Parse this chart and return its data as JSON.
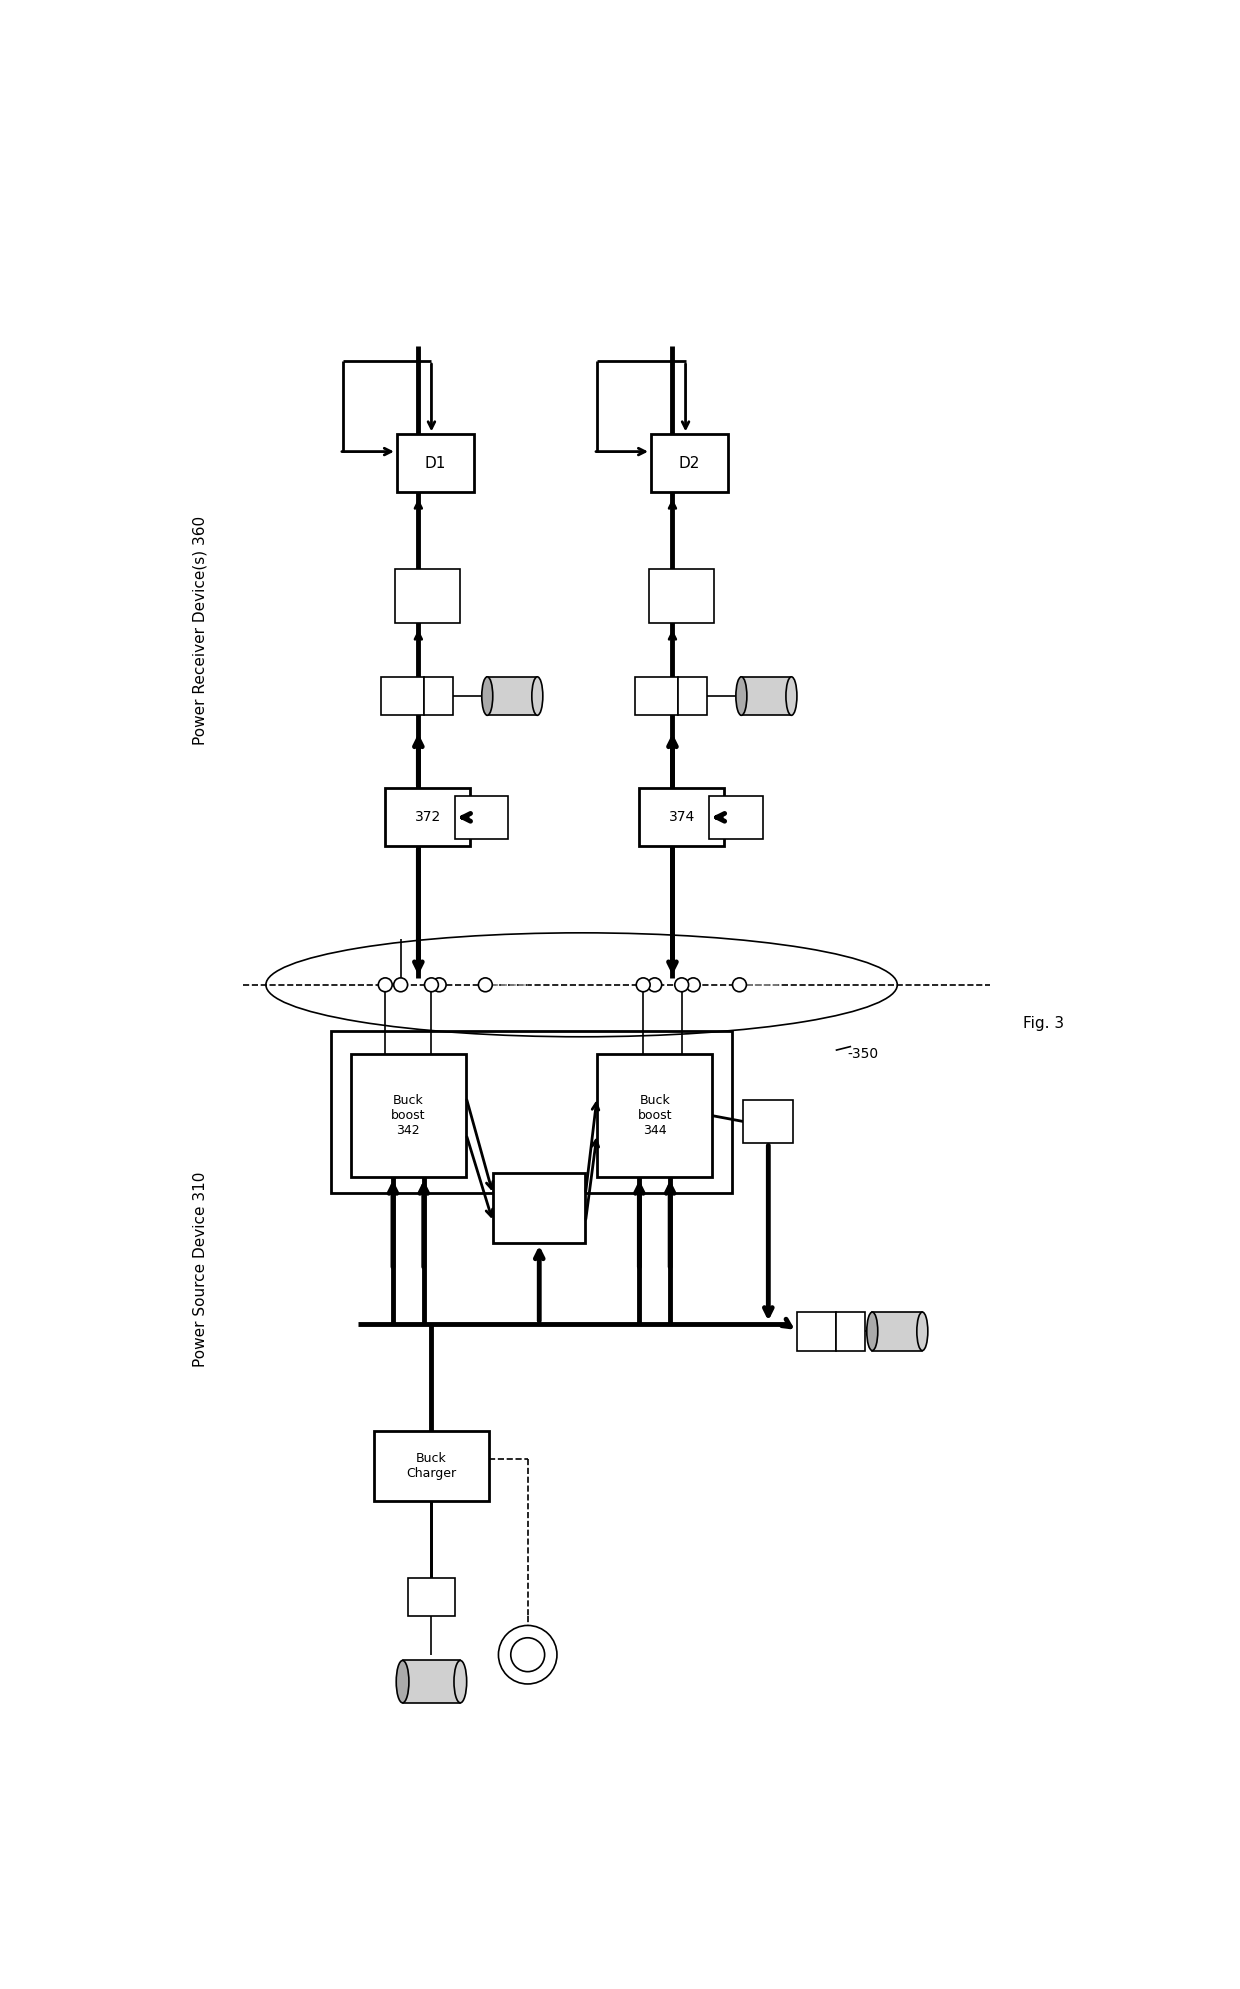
{
  "bg_color": "#ffffff",
  "label_psd": "Power Source Device 310",
  "label_prd": "Power Receiver Device(s) 360",
  "label_350": "-350",
  "label_bb342": "Buck\nboost\n342",
  "label_bb344": "Buck\nboost\n344",
  "label_bc": "Buck\nCharger",
  "label_372": "372",
  "label_374": "374",
  "label_d1": "D1",
  "label_d2": "D2",
  "fig_label": "Fig. 3",
  "lw_thin": 1.2,
  "lw_med": 2.0,
  "lw_thick": 3.5
}
